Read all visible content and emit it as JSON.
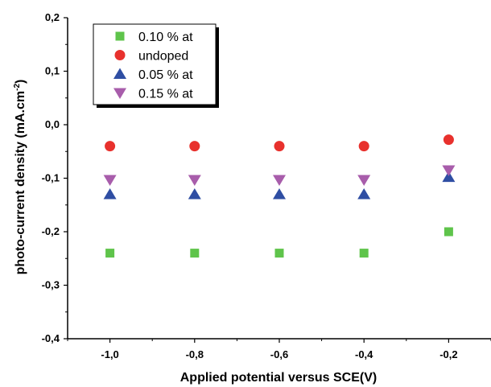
{
  "chart_data": {
    "type": "scatter",
    "title": "",
    "xlabel": "Applied potential versus SCE(V)",
    "ylabel": {
      "main": "photo-current density (mA.cm",
      "sup": "-2",
      "close": ")"
    },
    "xlim": [
      -1.1,
      -0.1
    ],
    "ylim": [
      -0.4,
      0.2
    ],
    "xticks": [
      -1.0,
      -0.8,
      -0.6,
      -0.4,
      -0.2
    ],
    "xtick_labels": [
      "-1,0",
      "-0,8",
      "-0,6",
      "-0,4",
      "-0,2"
    ],
    "yticks": [
      -0.4,
      -0.3,
      -0.2,
      -0.1,
      0.0,
      0.1,
      0.2
    ],
    "ytick_labels": [
      "-0,4",
      "-0,3",
      "-0,2",
      "-0,1",
      "0,0",
      "0,1",
      "0,2"
    ],
    "grid": false,
    "legend_position": "top-left",
    "series": [
      {
        "name": "0.10  % at",
        "marker": "square",
        "color": "#5fc44b",
        "x": [
          -1.0,
          -0.8,
          -0.6,
          -0.4,
          -0.2
        ],
        "y": [
          -0.24,
          -0.24,
          -0.24,
          -0.24,
          -0.2
        ]
      },
      {
        "name": "undoped",
        "marker": "circle",
        "color": "#e8312d",
        "x": [
          -1.0,
          -0.8,
          -0.6,
          -0.4,
          -0.2
        ],
        "y": [
          -0.04,
          -0.04,
          -0.04,
          -0.04,
          -0.028
        ]
      },
      {
        "name": "0.05 % at",
        "marker": "triangle-up",
        "color": "#2f4ea3",
        "x": [
          -1.0,
          -0.8,
          -0.6,
          -0.4,
          -0.2
        ],
        "y": [
          -0.13,
          -0.13,
          -0.13,
          -0.13,
          -0.098
        ]
      },
      {
        "name": "0.15 % at",
        "marker": "triangle-down",
        "color": "#a85dab",
        "x": [
          -1.0,
          -0.8,
          -0.6,
          -0.4,
          -0.2
        ],
        "y": [
          -0.103,
          -0.103,
          -0.103,
          -0.103,
          -0.085
        ]
      }
    ]
  }
}
